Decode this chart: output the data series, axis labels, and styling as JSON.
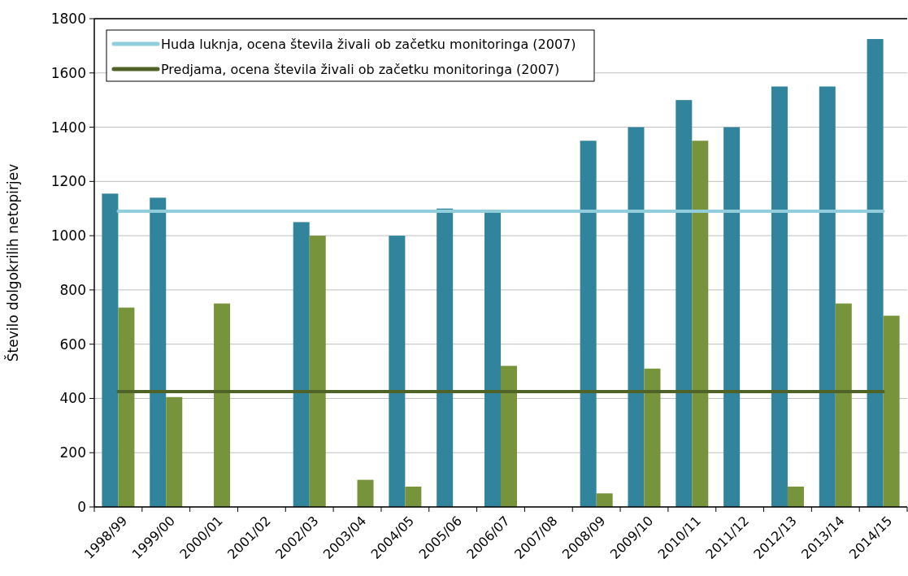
{
  "chart_data": {
    "type": "bar",
    "ylabel": "Število dolgokrilih netopirjev",
    "categories": [
      "1998/99",
      "1999/00",
      "2000/01",
      "2001/02",
      "2002/03",
      "2003/04",
      "2004/05",
      "2005/06",
      "2006/07",
      "2007/08",
      "2008/09",
      "2009/10",
      "2010/11",
      "2011/12",
      "2012/13",
      "2013/14",
      "2014/15"
    ],
    "series": [
      {
        "color": "#31849b",
        "values": [
          1155,
          1140,
          null,
          null,
          1050,
          null,
          1000,
          1100,
          1085,
          null,
          1350,
          1400,
          1500,
          1400,
          1550,
          1550,
          1725
        ]
      },
      {
        "color": "#77933c",
        "values": [
          735,
          405,
          750,
          null,
          1000,
          100,
          75,
          null,
          520,
          null,
          50,
          510,
          1350,
          null,
          75,
          750,
          705
        ]
      },
      {
        "type": "line",
        "name": "Huda luknja, ocena števila živali ob začetku monitoringa (2007)",
        "color": "#92cddc",
        "values": [
          1090,
          1090,
          1090,
          1090,
          1090,
          1090,
          1090,
          1090,
          1090,
          1090,
          1090,
          1090,
          1090,
          1090,
          1090,
          1090,
          1090
        ]
      },
      {
        "type": "line",
        "name": "Predjama, ocena števila živali ob začetku monitoringa (2007)",
        "color": "#4f6228",
        "values": [
          425,
          425,
          425,
          425,
          425,
          425,
          425,
          425,
          425,
          425,
          425,
          425,
          425,
          425,
          425,
          425,
          425
        ]
      }
    ],
    "ylim": [
      0,
      1800
    ],
    "yticks": [
      0,
      200,
      400,
      600,
      800,
      1000,
      1200,
      1400,
      1600,
      1800
    ],
    "grid": "y",
    "legend": "top left",
    "marker": "none",
    "line_style": "solid"
  }
}
